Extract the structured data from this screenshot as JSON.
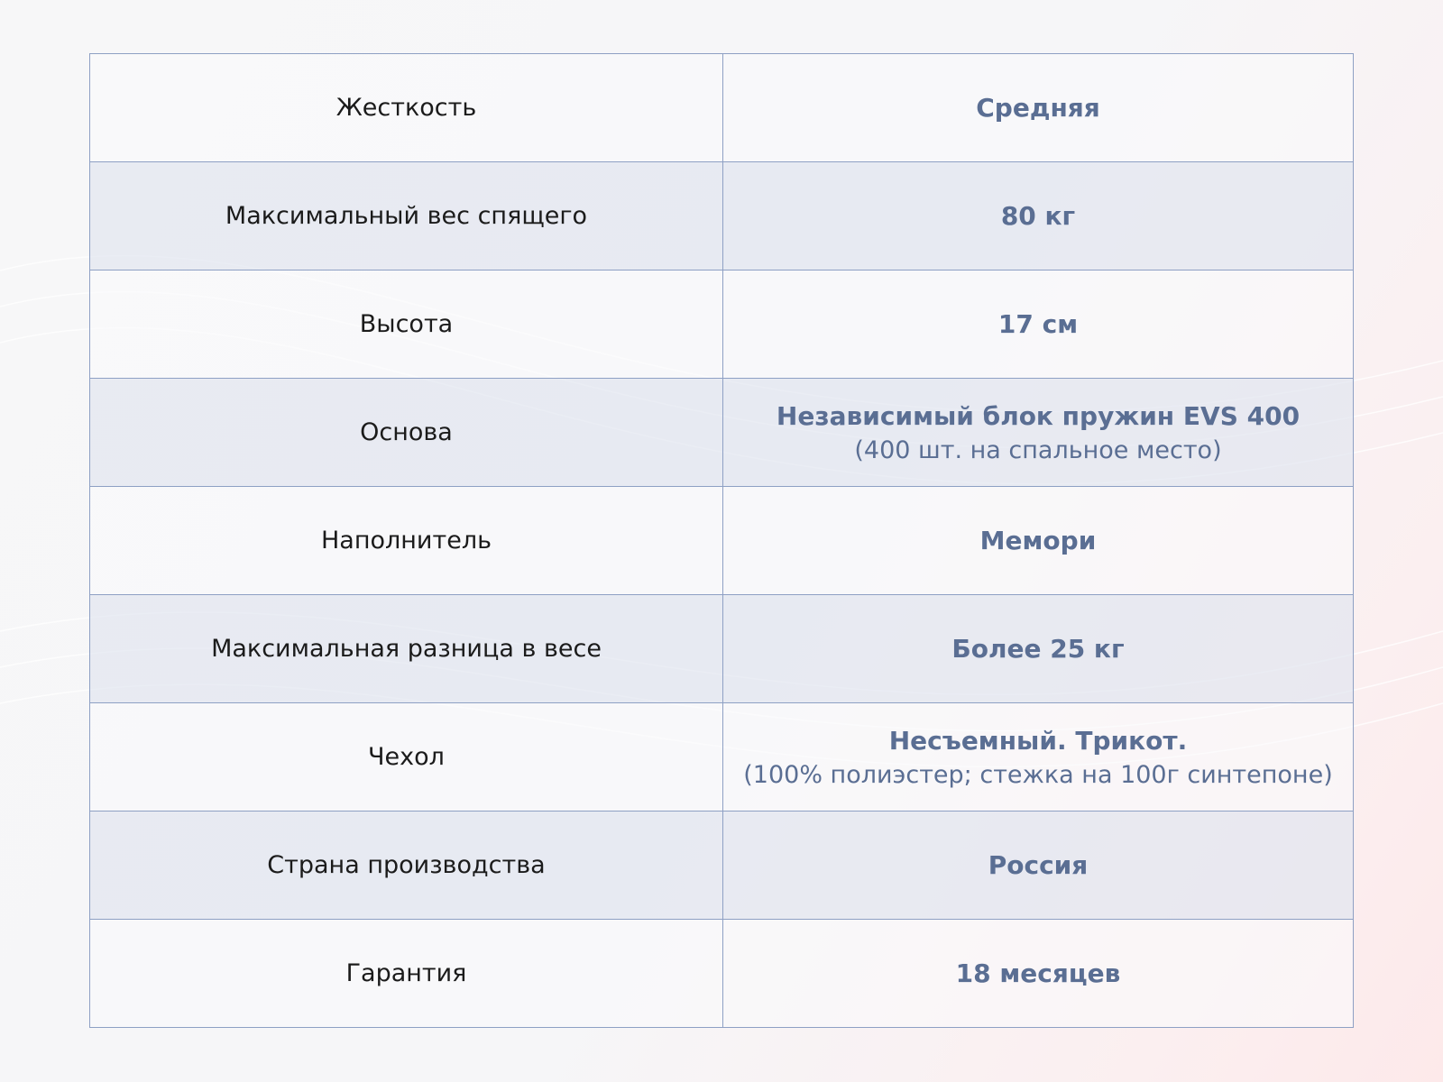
{
  "rows": [
    {
      "label": "Жесткость",
      "value": "Средняя",
      "note": ""
    },
    {
      "label": "Максимальный вес спящего",
      "value": "80 кг",
      "note": ""
    },
    {
      "label": "Высота",
      "value": "17 см",
      "note": ""
    },
    {
      "label": "Основа",
      "value": "Независимый блок пружин EVS 400",
      "note": "(400 шт. на спальное место)"
    },
    {
      "label": "Наполнитель",
      "value": "Мемори",
      "note": ""
    },
    {
      "label": "Максимальная разница в весе",
      "value": "Более 25 кг",
      "note": ""
    },
    {
      "label": "Чехол",
      "value": "Несъемный. Трикот.",
      "note": "(100% полиэстер; стежка на 100г синтепоне)"
    },
    {
      "label": "Страна производства",
      "value": "Россия",
      "note": ""
    },
    {
      "label": "Гарантия",
      "value": "18 месяцев",
      "note": ""
    }
  ],
  "colors": {
    "value_text": "#5a6e93",
    "border": "#8ea0c4",
    "alt_row": "#e1e6f0"
  }
}
